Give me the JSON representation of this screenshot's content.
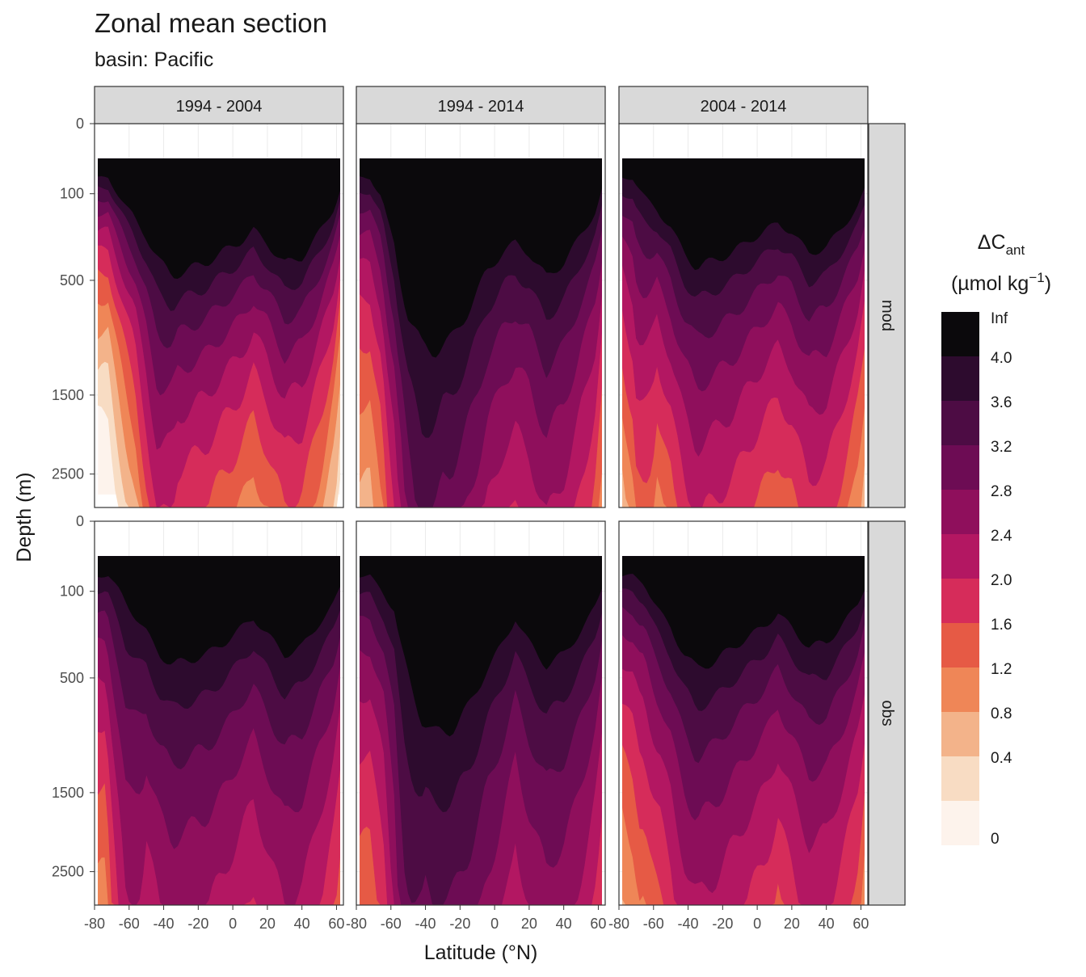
{
  "title": "Zonal mean section",
  "subtitle": "basin: Pacific",
  "chart_data": {
    "type": "heatmap",
    "subtype": "filled-contour faceted section",
    "xlabel": "Latitude (°N)",
    "ylabel": "Depth (m)",
    "x_ticks": [
      -80,
      -60,
      -40,
      -20,
      0,
      20,
      40,
      60
    ],
    "x_tick_labels": [
      "-80",
      "-60",
      "-40",
      "-20",
      "0",
      "20",
      "40",
      "60"
    ],
    "xlim": [
      -80,
      64
    ],
    "y_ticks": [
      0,
      100,
      500,
      1500,
      2500
    ],
    "y_tick_labels": [
      "0",
      "100",
      "500",
      "1500",
      "2500"
    ],
    "y_scale": "sqrt (reversed)",
    "ylim": [
      3000,
      0
    ],
    "col_facets": [
      "1994 - 2004",
      "1994 - 2014",
      "2004 - 2014"
    ],
    "row_facets": [
      "mod",
      "obs"
    ],
    "legend": {
      "title_main": "ΔC",
      "title_sub": "ant",
      "title_unit": "(µmol kg",
      "title_exp": "−1",
      "title_close": ")",
      "position": "right",
      "breaks": [
        "Inf",
        "4.0",
        "3.6",
        "3.2",
        "2.8",
        "2.4",
        "2.0",
        "1.6",
        "1.2",
        "0.8",
        "0.4",
        "0"
      ],
      "colors": [
        "#0b090c",
        "#2d0b2e",
        "#4d0c44",
        "#6d0c54",
        "#8f0f5c",
        "#b31762",
        "#d62c5a",
        "#e65a45",
        "#ef8657",
        "#f3b38a",
        "#f8dcc3",
        "#fdf3ec"
      ]
    },
    "panels": [
      {
        "row": "mod",
        "period": "1994 - 2004",
        "max_depth": 2800,
        "thresholds": {
          "x": [
            -78,
            -72,
            -65,
            -58,
            -50,
            -42,
            -35,
            -25,
            -15,
            -5,
            5,
            12,
            20,
            30,
            40,
            50,
            58,
            62
          ],
          "d4": [
            60,
            60,
            110,
            170,
            260,
            390,
            470,
            430,
            390,
            330,
            280,
            230,
            290,
            400,
            360,
            240,
            150,
            90
          ]
        },
        "shallow_factor": 1.4,
        "deep_highlight": -44,
        "deep_band": 1.3
      },
      {
        "row": "mod",
        "period": "1994 - 2014",
        "max_depth": 2800,
        "thresholds": {
          "x": [
            -78,
            -72,
            -65,
            -58,
            -50,
            -42,
            -35,
            -25,
            -15,
            -5,
            5,
            12,
            20,
            30,
            40,
            50,
            58,
            62
          ],
          "d4": [
            60,
            60,
            110,
            300,
            750,
            1000,
            1050,
            950,
            700,
            450,
            330,
            290,
            340,
            480,
            390,
            250,
            160,
            90
          ]
        },
        "shallow_factor": 1.6,
        "deep_highlight": -42,
        "deep_band": 1.5
      },
      {
        "row": "mod",
        "period": "2004 - 2014",
        "max_depth": 2800,
        "thresholds": {
          "x": [
            -78,
            -72,
            -65,
            -58,
            -50,
            -42,
            -35,
            -25,
            -15,
            -5,
            5,
            12,
            20,
            30,
            40,
            50,
            58,
            62
          ],
          "d4": [
            60,
            60,
            110,
            150,
            220,
            340,
            420,
            380,
            340,
            280,
            230,
            200,
            240,
            340,
            310,
            210,
            140,
            90
          ]
        },
        "shallow_factor": 1.5,
        "deep_highlight": -70,
        "deep_band": 1.8
      },
      {
        "row": "obs",
        "period": "1994 - 2004",
        "max_depth": 2800,
        "thresholds": {
          "x": [
            -78,
            -72,
            -65,
            -58,
            -50,
            -42,
            -35,
            -25,
            -15,
            -5,
            5,
            12,
            20,
            30,
            40,
            50,
            58,
            62
          ],
          "d4": [
            60,
            60,
            100,
            170,
            250,
            360,
            420,
            390,
            360,
            300,
            230,
            190,
            260,
            360,
            320,
            210,
            140,
            90
          ]
        },
        "shallow_factor": 1.7,
        "deep_highlight": -62,
        "deep_band": 2.0
      },
      {
        "row": "obs",
        "period": "1994 - 2014",
        "max_depth": 2800,
        "thresholds": {
          "x": [
            -78,
            -72,
            -65,
            -58,
            -50,
            -42,
            -35,
            -25,
            -15,
            -5,
            5,
            12,
            20,
            30,
            40,
            50,
            58,
            62
          ],
          "d4": [
            60,
            60,
            100,
            160,
            480,
            800,
            920,
            880,
            700,
            450,
            300,
            190,
            300,
            420,
            360,
            240,
            150,
            90
          ]
        },
        "shallow_factor": 1.8,
        "deep_highlight": -52,
        "deep_band": 2.0
      },
      {
        "row": "obs",
        "period": "2004 - 2014",
        "max_depth": 2800,
        "thresholds": {
          "x": [
            -78,
            -72,
            -65,
            -58,
            -50,
            -42,
            -35,
            -25,
            -15,
            -5,
            5,
            12,
            20,
            30,
            40,
            50,
            58,
            62
          ],
          "d4": [
            60,
            60,
            80,
            150,
            230,
            360,
            440,
            400,
            330,
            270,
            220,
            170,
            230,
            320,
            300,
            210,
            140,
            90
          ]
        },
        "shallow_factor": 1.6,
        "deep_highlight": -68,
        "deep_band": 1.2
      }
    ]
  }
}
